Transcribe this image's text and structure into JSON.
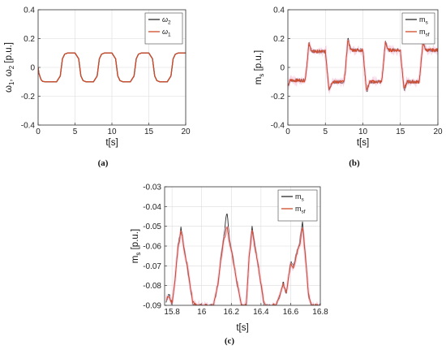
{
  "chart_data": [
    {
      "type": "line",
      "panel": "a",
      "caption": "(a)",
      "xlabel": "t[s]",
      "ylabel_parts": [
        "ω",
        "1",
        ", ω",
        "2",
        " [p.u.]"
      ],
      "xlim": [
        0,
        20
      ],
      "ylim": [
        -0.4,
        0.4
      ],
      "xticks": [
        "0",
        "5",
        "10",
        "15",
        "20"
      ],
      "yticks": [
        "-0.4",
        "-0.2",
        "0",
        "0.2",
        "0.4"
      ],
      "grid": true,
      "legend_position": "top-right",
      "series": [
        {
          "name": "ω",
          "sub": "2",
          "color": "#2b2b2b",
          "x": [
            0,
            0.1,
            0.4,
            0.6,
            1,
            1.5,
            2.5,
            3.0,
            3.3,
            3.6,
            4.0,
            5.0,
            5.5,
            5.8,
            6.1,
            6.5,
            7.5,
            8.0,
            8.3,
            8.6,
            9.0,
            10.0,
            10.5,
            10.8,
            11.1,
            11.5,
            12.5,
            13.0,
            13.3,
            13.6,
            14.0,
            15.0,
            15.5,
            15.8,
            16.1,
            16.5,
            17.5,
            18.0,
            18.3,
            18.6,
            19.0,
            20
          ],
          "values": [
            0,
            -0.04,
            -0.085,
            -0.097,
            -0.1,
            -0.1,
            -0.1,
            -0.06,
            0.06,
            0.092,
            0.1,
            0.1,
            0.06,
            -0.06,
            -0.092,
            -0.1,
            -0.1,
            -0.06,
            0.06,
            0.092,
            0.1,
            0.1,
            0.06,
            -0.06,
            -0.092,
            -0.1,
            -0.1,
            -0.06,
            0.06,
            0.092,
            0.1,
            0.1,
            0.06,
            -0.06,
            -0.092,
            -0.1,
            -0.1,
            -0.06,
            0.06,
            0.092,
            0.1,
            0.1
          ]
        },
        {
          "name": "ω",
          "sub": "1",
          "color": "#d04a2a",
          "x": [
            0,
            0.1,
            0.4,
            0.6,
            1,
            1.5,
            2.5,
            3.0,
            3.3,
            3.6,
            4.0,
            5.0,
            5.5,
            5.8,
            6.1,
            6.5,
            7.5,
            8.0,
            8.3,
            8.6,
            9.0,
            10.0,
            10.5,
            10.8,
            11.1,
            11.5,
            12.5,
            13.0,
            13.3,
            13.6,
            14.0,
            15.0,
            15.5,
            15.8,
            16.1,
            16.5,
            17.5,
            18.0,
            18.3,
            18.6,
            19.0,
            20
          ],
          "values": [
            0,
            -0.04,
            -0.085,
            -0.097,
            -0.1,
            -0.1,
            -0.1,
            -0.06,
            0.06,
            0.092,
            0.1,
            0.1,
            0.06,
            -0.06,
            -0.092,
            -0.1,
            -0.1,
            -0.06,
            0.06,
            0.092,
            0.1,
            0.1,
            0.06,
            -0.06,
            -0.092,
            -0.1,
            -0.1,
            -0.06,
            0.06,
            0.092,
            0.1,
            0.1,
            0.06,
            -0.06,
            -0.092,
            -0.1,
            -0.1,
            -0.06,
            0.06,
            0.092,
            0.1,
            0.1
          ]
        }
      ]
    },
    {
      "type": "line",
      "panel": "b",
      "caption": "(b)",
      "xlabel": "t[s]",
      "ylabel_parts": [
        "m",
        "s",
        " [p.u.]"
      ],
      "xlim": [
        0,
        20
      ],
      "ylim": [
        -0.4,
        0.4
      ],
      "xticks": [
        "0",
        "5",
        "10",
        "15",
        "20"
      ],
      "yticks": [
        "-0.4",
        "-0.2",
        "0",
        "0.2",
        "0.4"
      ],
      "grid": true,
      "legend_position": "top-right",
      "series": [
        {
          "name": "m",
          "sub": "s",
          "color": "#2b2b2b",
          "x": [
            0,
            0.3,
            2.3,
            2.5,
            2.8,
            3.2,
            5.0,
            5.2,
            5.5,
            5.9,
            7.5,
            7.7,
            8.0,
            8.4,
            10.0,
            10.2,
            10.5,
            10.9,
            12.5,
            12.7,
            13.0,
            13.4,
            15.0,
            15.2,
            15.5,
            15.9,
            17.5,
            17.7,
            18.0,
            18.4,
            20
          ],
          "values": [
            -0.13,
            -0.09,
            -0.09,
            0.0,
            0.17,
            0.11,
            0.11,
            0.0,
            -0.16,
            -0.1,
            -0.1,
            0.0,
            0.2,
            0.12,
            0.12,
            0.0,
            -0.17,
            -0.1,
            -0.1,
            0.0,
            0.18,
            0.12,
            0.12,
            0.0,
            -0.16,
            -0.1,
            -0.1,
            0.0,
            0.18,
            0.12,
            0.12
          ]
        },
        {
          "name": "m",
          "sub": "sf",
          "color": "#d04a2a",
          "x": [
            0,
            0.3,
            2.3,
            2.5,
            2.8,
            3.2,
            5.0,
            5.2,
            5.5,
            5.9,
            7.5,
            7.7,
            8.0,
            8.4,
            10.0,
            10.2,
            10.5,
            10.9,
            12.5,
            12.7,
            13.0,
            13.4,
            15.0,
            15.2,
            15.5,
            15.9,
            17.5,
            17.7,
            18.0,
            18.4,
            20
          ],
          "values": [
            -0.13,
            -0.09,
            -0.09,
            0.0,
            0.16,
            0.11,
            0.11,
            0.0,
            -0.15,
            -0.1,
            -0.1,
            0.0,
            0.19,
            0.12,
            0.12,
            0.0,
            -0.16,
            -0.1,
            -0.1,
            0.0,
            0.17,
            0.12,
            0.12,
            0.0,
            -0.15,
            -0.1,
            -0.1,
            0.0,
            0.17,
            0.12,
            0.12
          ]
        }
      ]
    },
    {
      "type": "line",
      "panel": "c",
      "caption": "(c)",
      "xlabel": "t[s]",
      "ylabel_parts": [
        "m",
        "s",
        " [p.u.]"
      ],
      "xlim": [
        15.75,
        16.8
      ],
      "ylim": [
        -0.09,
        -0.03
      ],
      "xticks": [
        "15.8",
        "16",
        "16.2",
        "16.4",
        "16.6",
        "16.8"
      ],
      "yticks": [
        "-0.09",
        "-0.08",
        "-0.07",
        "-0.06",
        "-0.05",
        "-0.04",
        "-0.03"
      ],
      "grid": true,
      "legend_position": "top-right",
      "series": [
        {
          "name": "m",
          "sub": "s",
          "color": "#2b2b2b",
          "x": [
            15.76,
            15.78,
            15.8,
            15.82,
            15.84,
            15.86,
            15.87,
            15.88,
            15.9,
            15.92,
            15.94,
            15.96,
            16.0,
            16.04,
            16.08,
            16.11,
            16.13,
            16.15,
            16.17,
            16.19,
            16.21,
            16.24,
            16.27,
            16.3,
            16.32,
            16.34,
            16.36,
            16.38,
            16.4,
            16.42,
            16.44,
            16.47,
            16.5,
            16.53,
            16.55,
            16.57,
            16.6,
            16.62,
            16.64,
            16.66,
            16.68,
            16.7,
            16.72,
            16.74,
            16.76,
            16.78,
            16.8
          ],
          "values": [
            -0.088,
            -0.084,
            -0.09,
            -0.078,
            -0.06,
            -0.051,
            -0.054,
            -0.06,
            -0.07,
            -0.08,
            -0.089,
            -0.09,
            -0.09,
            -0.09,
            -0.09,
            -0.08,
            -0.065,
            -0.055,
            -0.042,
            -0.058,
            -0.065,
            -0.08,
            -0.09,
            -0.09,
            -0.065,
            -0.05,
            -0.06,
            -0.07,
            -0.08,
            -0.09,
            -0.09,
            -0.09,
            -0.09,
            -0.085,
            -0.078,
            -0.085,
            -0.068,
            -0.07,
            -0.063,
            -0.058,
            -0.048,
            -0.065,
            -0.085,
            -0.09,
            -0.09,
            -0.09,
            -0.09
          ]
        },
        {
          "name": "m",
          "sub": "sf",
          "color": "#d04a2a",
          "x": [
            15.76,
            15.78,
            15.8,
            15.82,
            15.84,
            15.86,
            15.87,
            15.88,
            15.9,
            15.92,
            15.94,
            15.96,
            16.0,
            16.04,
            16.08,
            16.11,
            16.13,
            16.15,
            16.17,
            16.19,
            16.21,
            16.24,
            16.27,
            16.3,
            16.32,
            16.34,
            16.36,
            16.38,
            16.4,
            16.42,
            16.44,
            16.47,
            16.5,
            16.53,
            16.55,
            16.57,
            16.6,
            16.62,
            16.64,
            16.66,
            16.68,
            16.7,
            16.72,
            16.74,
            16.76,
            16.78,
            16.8
          ],
          "values": [
            -0.087,
            -0.085,
            -0.089,
            -0.077,
            -0.061,
            -0.053,
            -0.055,
            -0.061,
            -0.069,
            -0.079,
            -0.088,
            -0.09,
            -0.09,
            -0.09,
            -0.09,
            -0.079,
            -0.066,
            -0.057,
            -0.05,
            -0.059,
            -0.066,
            -0.079,
            -0.09,
            -0.09,
            -0.066,
            -0.052,
            -0.061,
            -0.069,
            -0.079,
            -0.089,
            -0.09,
            -0.09,
            -0.09,
            -0.084,
            -0.079,
            -0.084,
            -0.069,
            -0.071,
            -0.064,
            -0.06,
            -0.05,
            -0.066,
            -0.084,
            -0.09,
            -0.09,
            -0.09,
            -0.09
          ]
        }
      ]
    }
  ]
}
